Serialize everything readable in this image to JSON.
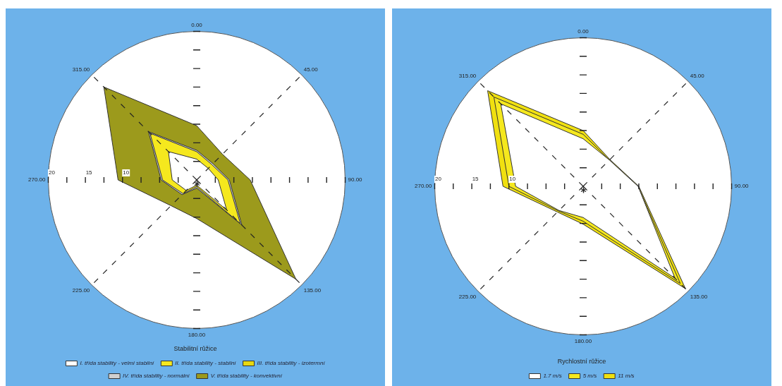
{
  "chart_data": [
    {
      "type": "radar",
      "categories": [
        "0.00",
        "45.00",
        "90.00",
        "135.00",
        "180.00",
        "225.00",
        "270.00",
        "315.00"
      ],
      "legend_title": "Stabilitní růžice",
      "legend": "bottom",
      "grid": true,
      "marker": "none",
      "ylim": [
        0,
        20
      ],
      "yticks": [
        10,
        15,
        20
      ],
      "series": [
        {
          "name": "I. třída stability - velmi stabilní",
          "color": "#ffffff",
          "values": [
            2.8,
            2.2,
            2.9,
            5.7,
            0.7,
            2.0,
            3.3,
            5.4
          ]
        },
        {
          "name": "II. třída stability - stabilní",
          "color": "#f5e81e",
          "values": [
            3.8,
            2.9,
            4.2,
            8.3,
            0.9,
            2.6,
            4.6,
            8.9
          ]
        },
        {
          "name": "III. třída stability - izotermní",
          "color": "#e8d810",
          "values": [
            3.4,
            2.6,
            3.6,
            7.2,
            0.8,
            2.3,
            4.0,
            7.3
          ]
        },
        {
          "name": "IV. třída stability - normální",
          "color": "#d0d0d0",
          "values": [
            4.0,
            3.1,
            4.4,
            8.6,
            1.1,
            2.8,
            4.8,
            9.2
          ]
        },
        {
          "name": "V. třída stability - konvektivní",
          "color": "#9c9a1c",
          "values": [
            7.3,
            4.9,
            7.2,
            18.9,
            5.2,
            4.9,
            10.6,
            17.7
          ]
        }
      ]
    },
    {
      "type": "radar",
      "categories": [
        "0.00",
        "45.00",
        "90.00",
        "135.00",
        "180.00",
        "225.00",
        "270.00",
        "315.00"
      ],
      "legend_title": "Rychlostní růžice",
      "legend": "bottom",
      "grid": true,
      "marker": "none",
      "ylim": [
        0,
        20
      ],
      "yticks": [
        10,
        15,
        20
      ],
      "series": [
        {
          "name": "1.7 m/s",
          "color": "#ffffff",
          "values": [
            6.4,
            5.0,
            7.4,
            17.5,
            4.2,
            4.6,
            9.1,
            15.7
          ]
        },
        {
          "name": "5 m/s",
          "color": "#f5e81e",
          "values": [
            7.0,
            5.0,
            7.4,
            18.5,
            4.7,
            4.7,
            10.0,
            17.0
          ]
        },
        {
          "name": "11 m/s",
          "color": "#f0e010",
          "values": [
            7.5,
            5.1,
            7.5,
            19.5,
            5.1,
            4.9,
            10.8,
            18.2
          ]
        }
      ]
    }
  ]
}
